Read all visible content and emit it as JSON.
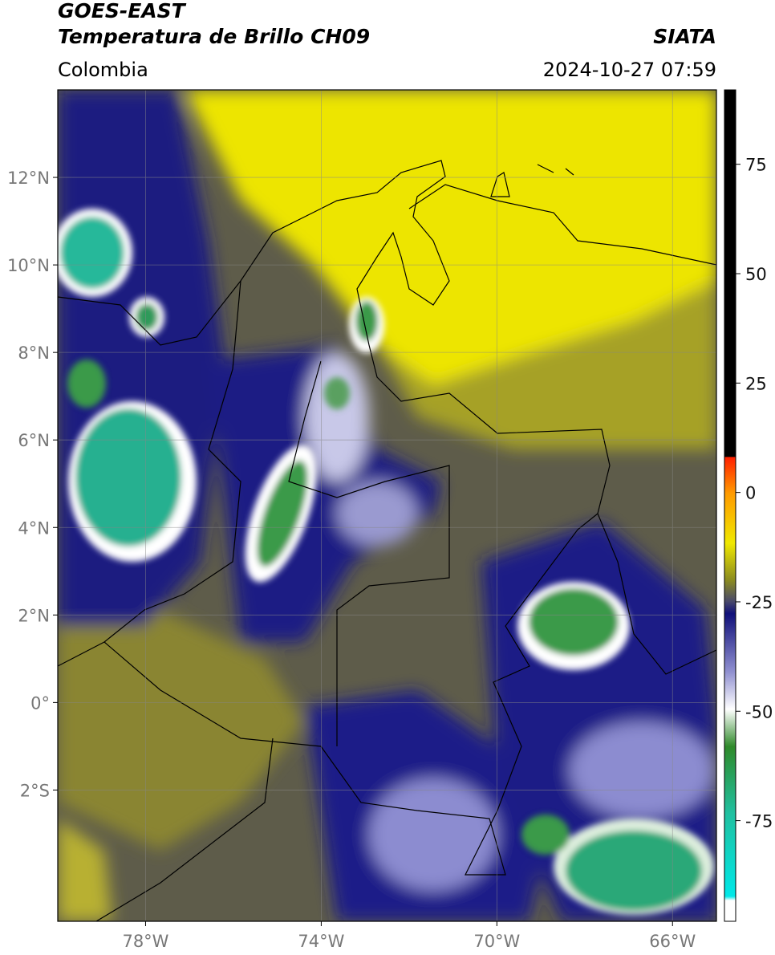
{
  "header": {
    "title": "GOES-EAST",
    "subtitle": "Temperatura de Brillo CH09",
    "source": "SIATA",
    "region": "Colombia",
    "datetime": "2024-10-27 07:59"
  },
  "map": {
    "xlim": [
      -80,
      -65
    ],
    "ylim": [
      -5,
      14
    ],
    "xticks": [
      {
        "value": -78,
        "label": "78°W"
      },
      {
        "value": -74,
        "label": "74°W"
      },
      {
        "value": -70,
        "label": "70°W"
      },
      {
        "value": -66,
        "label": "66°W"
      }
    ],
    "yticks": [
      {
        "value": 12,
        "label": "12°N"
      },
      {
        "value": 10,
        "label": "10°N"
      },
      {
        "value": 8,
        "label": "8°N"
      },
      {
        "value": 6,
        "label": "6°N"
      },
      {
        "value": 4,
        "label": "4°N"
      },
      {
        "value": 2,
        "label": "2°N"
      },
      {
        "value": 0,
        "label": "0°"
      },
      {
        "value": -2,
        "label": "2°S"
      }
    ],
    "grid": true
  },
  "colorbar": {
    "lim": [
      -98,
      92
    ],
    "ticks": [
      75,
      50,
      25,
      0,
      -25,
      -50,
      -75
    ]
  }
}
